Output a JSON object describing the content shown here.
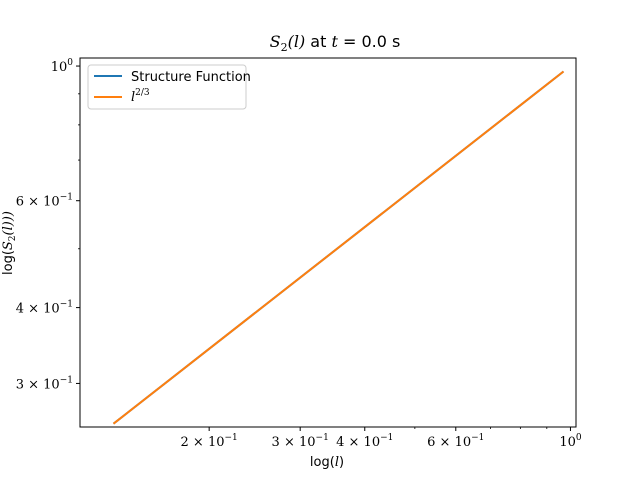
{
  "chart_data": {
    "type": "line",
    "title_prefix": "S",
    "title_sub": "2",
    "title_mid": "(l)",
    "title_text": " at ",
    "title_var": "t",
    "title_eq": " = 0.0 s",
    "xlabel_prefix": "log(",
    "xlabel_var": "l",
    "xlabel_suffix": ")",
    "ylabel_prefix": "log(",
    "ylabel_var": "S",
    "ylabel_sub": "2",
    "ylabel_suffix": "(l)))",
    "xscale": "log",
    "yscale": "log",
    "xlim": [
      0.1125,
      1.025
    ],
    "ylim": [
      0.2543,
      1.031
    ],
    "x_ticks": [
      {
        "value": 0.2,
        "mantissa": "2",
        "exp": "−1"
      },
      {
        "value": 0.3,
        "mantissa": "3",
        "exp": "−1"
      },
      {
        "value": 0.4,
        "mantissa": "4",
        "exp": "−1"
      },
      {
        "value": 0.6,
        "mantissa": "6",
        "exp": "−1"
      },
      {
        "value": 1.0,
        "mantissa": "",
        "exp": "0"
      }
    ],
    "y_ticks": [
      {
        "value": 0.3,
        "mantissa": "3",
        "exp": "−1"
      },
      {
        "value": 0.4,
        "mantissa": "4",
        "exp": "−1"
      },
      {
        "value": 0.6,
        "mantissa": "6",
        "exp": "−1"
      },
      {
        "value": 1.0,
        "mantissa": "",
        "exp": "0"
      }
    ],
    "x_minor_ticks": [
      0.5,
      0.7,
      0.8,
      0.9
    ],
    "y_minor_ticks": [
      0.5,
      0.7,
      0.8,
      0.9
    ],
    "grid": false,
    "legend_position": "top-left",
    "series": [
      {
        "name": "Structure Function",
        "color": "#1f77b4",
        "x": [
          0.1306,
          0.9694
        ],
        "y": [
          0.2575,
          0.9795
        ]
      },
      {
        "name_base": "l",
        "name_exp": "2/3",
        "color": "#ff7f0e",
        "x": [
          0.1306,
          0.9694
        ],
        "y": [
          0.2575,
          0.9795
        ]
      }
    ]
  }
}
